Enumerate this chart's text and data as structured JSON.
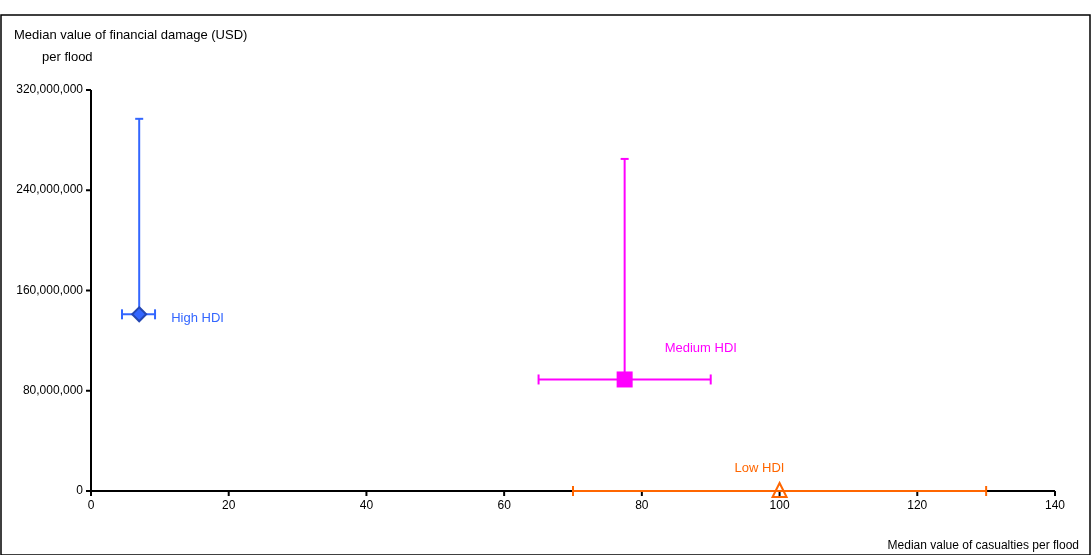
{
  "chart_data": {
    "type": "scatter",
    "ylabel": "Median value of financial damage (USD) per flood",
    "xlabel": "Median value of casualties per flood",
    "xlim": [
      0,
      140
    ],
    "xticks": [
      0,
      20,
      40,
      60,
      80,
      100,
      120,
      140
    ],
    "ylim": [
      0,
      320000000
    ],
    "yticks": [
      {
        "value": 0,
        "label": "0"
      },
      {
        "value": 80000000,
        "label": "80,000,000"
      },
      {
        "value": 160000000,
        "label": "160,000,000"
      },
      {
        "value": 240000000,
        "label": "240,000,000"
      },
      {
        "value": 320000000,
        "label": "320,000,000"
      }
    ],
    "grid": false,
    "series": [
      {
        "name": "High HDI",
        "color": "#3366ff",
        "marker": "diamond",
        "x": [
          7
        ],
        "values": [
          141000000
        ],
        "errors": [
          [
            141000000,
            297000000
          ]
        ],
        "xerrors": [
          [
            4.5,
            9.3
          ]
        ]
      },
      {
        "name": "Medium HDI",
        "color": "#ff00ff",
        "marker": "square",
        "x": [
          77.5
        ],
        "values": [
          89000000
        ],
        "errors": [
          [
            89000000,
            265000000
          ]
        ],
        "xerrors": [
          [
            65,
            90
          ]
        ]
      },
      {
        "name": "Low HDI",
        "color": "#ff6600",
        "marker": "triangle",
        "x": [
          100
        ],
        "values": [
          0
        ],
        "xerrors": [
          [
            70,
            130
          ]
        ]
      }
    ]
  }
}
